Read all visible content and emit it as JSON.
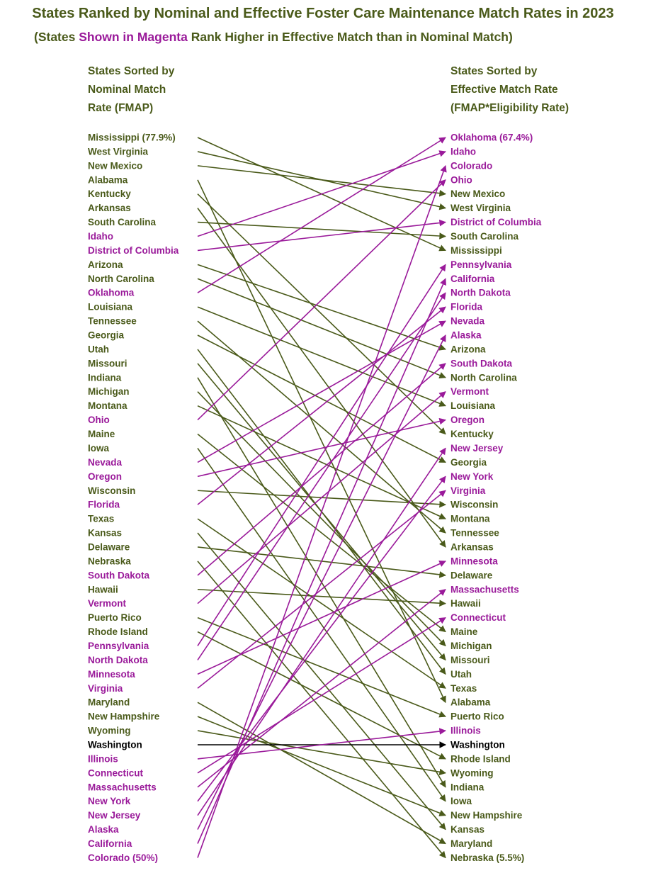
{
  "title": "States Ranked by Nominal and Effective Foster Care Maintenance Match Rates in 2023",
  "subtitle": {
    "before": "(States ",
    "highlight": "Shown in Magenta",
    "after": " Rank Higher in Effective Match than in Nominal Match)"
  },
  "left_header": [
    "States Sorted by",
    "Nominal Match",
    "Rate (FMAP)"
  ],
  "right_header": [
    "States Sorted by",
    "Effective Match Rate",
    "(FMAP*Eligibility Rate)"
  ],
  "colors": {
    "higher": "#9a1a9a",
    "lower": "#4a5a1a",
    "same": "#000000"
  },
  "chart_data": {
    "type": "slope",
    "left_first_value": "77.9%",
    "left_last_value": "50%",
    "right_first_value": "67.4%",
    "right_last_value": "5.5%",
    "left": [
      "Mississippi",
      "West Virginia",
      "New Mexico",
      "Alabama",
      "Kentucky",
      "Arkansas",
      "South Carolina",
      "Idaho",
      "District of Columbia",
      "Arizona",
      "North Carolina",
      "Oklahoma",
      "Louisiana",
      "Tennessee",
      "Georgia",
      "Utah",
      "Missouri",
      "Indiana",
      "Michigan",
      "Montana",
      "Ohio",
      "Maine",
      "Iowa",
      "Nevada",
      "Oregon",
      "Wisconsin",
      "Florida",
      "Texas",
      "Kansas",
      "Delaware",
      "Nebraska",
      "South Dakota",
      "Hawaii",
      "Vermont",
      "Puerto Rico",
      "Rhode Island",
      "Pennsylvania",
      "North Dakota",
      "Minnesota",
      "Virginia",
      "Maryland",
      "New Hampshire",
      "Wyoming",
      "Washington",
      "Illinois",
      "Connecticut",
      "Massachusetts",
      "New York",
      "New Jersey",
      "Alaska",
      "California",
      "Colorado"
    ],
    "right": [
      "Oklahoma",
      "Idaho",
      "Colorado",
      "Ohio",
      "New Mexico",
      "West Virginia",
      "District of Columbia",
      "South Carolina",
      "Mississippi",
      "Pennsylvania",
      "California",
      "North Dakota",
      "Florida",
      "Nevada",
      "Alaska",
      "Arizona",
      "South Dakota",
      "North Carolina",
      "Vermont",
      "Louisiana",
      "Oregon",
      "Kentucky",
      "New Jersey",
      "Georgia",
      "New York",
      "Virginia",
      "Wisconsin",
      "Montana",
      "Tennessee",
      "Arkansas",
      "Minnesota",
      "Delaware",
      "Massachusetts",
      "Hawaii",
      "Connecticut",
      "Maine",
      "Michigan",
      "Missouri",
      "Utah",
      "Texas",
      "Alabama",
      "Puerto Rico",
      "Illinois",
      "Washington",
      "Rhode Island",
      "Wyoming",
      "Indiana",
      "Iowa",
      "New Hampshire",
      "Kansas",
      "Maryland",
      "Nebraska"
    ]
  }
}
